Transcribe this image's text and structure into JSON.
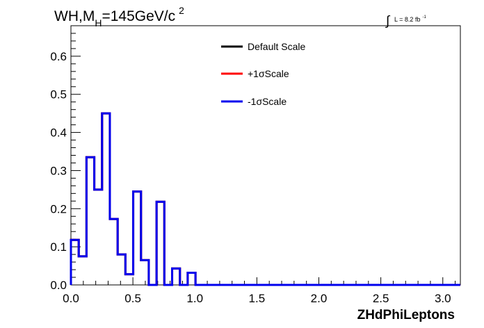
{
  "chart_data": {
    "type": "histogram-step",
    "title": {
      "main": "WH,M",
      "sub": "H",
      "rest": "=145GeV/c",
      "sup": "2"
    },
    "lumi": {
      "integral": "∫",
      "text": "L = 8.2 fb",
      "sup": "-1"
    },
    "xlabel": "ZHdPhiLeptons",
    "ylabel": "",
    "xlim": [
      0,
      3.1416
    ],
    "ylim": [
      0,
      0.68
    ],
    "xticks": [
      0.0,
      0.5,
      1.0,
      1.5,
      2.0,
      2.5,
      3.0
    ],
    "xtick_labels": [
      "0.0",
      "0.5",
      "1.0",
      "1.5",
      "2.0",
      "2.5",
      "3.0"
    ],
    "yticks": [
      0.0,
      0.1,
      0.2,
      0.3,
      0.4,
      0.5,
      0.6
    ],
    "ytick_labels": [
      "0.0",
      "0.1",
      "0.2",
      "0.3",
      "0.4",
      "0.5",
      "0.6"
    ],
    "bin_width": 0.0628,
    "bin_values": [
      0.118,
      0.075,
      0.335,
      0.25,
      0.45,
      0.173,
      0.08,
      0.028,
      0.245,
      0.065,
      0.0,
      0.218,
      0.0,
      0.043,
      0.0,
      0.032,
      0,
      0,
      0,
      0,
      0,
      0,
      0,
      0,
      0,
      0,
      0,
      0,
      0,
      0,
      0,
      0,
      0,
      0,
      0,
      0,
      0,
      0,
      0,
      0,
      0,
      0,
      0,
      0,
      0,
      0,
      0,
      0,
      0,
      0
    ],
    "series": [
      {
        "name": "Default Scale",
        "color": "#000000"
      },
      {
        "name": "+1σScale",
        "color": "#ff0000"
      },
      {
        "name": "-1σScale",
        "color": "#0000ee"
      }
    ],
    "legend_placement": "top-center",
    "grid": false
  }
}
